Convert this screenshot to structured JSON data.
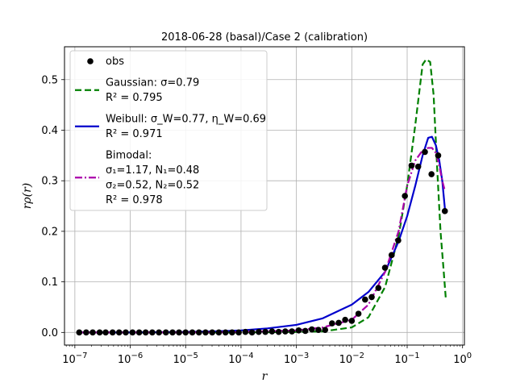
{
  "chart_data": {
    "type": "line",
    "title": "2018-06-28 (basal)/Case 2 (calibration)",
    "xlabel": "r",
    "ylabel": "rρ(r)",
    "xscale": "log",
    "xlim": [
      6.5e-08,
      1.08
    ],
    "ylim": [
      -0.025,
      0.565
    ],
    "xticks": [
      1e-07,
      1e-06,
      1e-05,
      0.0001,
      0.001,
      0.01,
      0.1,
      1
    ],
    "xtick_labels": [
      "10^-7",
      "10^-6",
      "10^-5",
      "10^-4",
      "10^-3",
      "10^-2",
      "10^-1",
      "10^0"
    ],
    "yticks": [
      0.0,
      0.1,
      0.2,
      0.3,
      0.4,
      0.5
    ],
    "ytick_labels": [
      "0.0",
      "0.1",
      "0.2",
      "0.3",
      "0.4",
      "0.5"
    ],
    "grid": true,
    "legend_position": "top-left",
    "legend": [
      {
        "key": "obs",
        "lines": [
          "obs"
        ]
      },
      {
        "key": "gaussian",
        "lines": [
          "Gaussian: σ=0.79",
          "R² = 0.795"
        ]
      },
      {
        "key": "weibull",
        "lines": [
          "Weibull: σ_W=0.77, η_W=0.69",
          "R² = 0.971"
        ]
      },
      {
        "key": "bimodal",
        "lines": [
          "Bimodal:",
          "σ₁=1.17, N₁=0.48",
          "σ₂=0.52, N₂=0.52",
          "R² = 0.978"
        ]
      }
    ],
    "series": [
      {
        "key": "obs",
        "name": "obs",
        "style": "markers",
        "color": "#000000",
        "x": [
          1.2e-07,
          1.6e-07,
          2.1e-07,
          2.8e-07,
          3.6e-07,
          4.8e-07,
          6.3e-07,
          8.3e-07,
          1.1e-06,
          1.45e-06,
          1.9e-06,
          2.5e-06,
          3.3e-06,
          4.4e-06,
          5.8e-06,
          7.6e-06,
          1e-05,
          1.32e-05,
          1.74e-05,
          2.29e-05,
          3.02e-05,
          3.98e-05,
          5.25e-05,
          6.9e-05,
          9.1e-05,
          0.00012,
          0.000158,
          0.000209,
          0.000275,
          0.000363,
          0.000479,
          0.00063,
          0.00083,
          0.0011,
          0.00145,
          0.0019,
          0.0025,
          0.0033,
          0.0044,
          0.0058,
          0.0076,
          0.01,
          0.0132,
          0.0174,
          0.0229,
          0.0302,
          0.0398,
          0.0525,
          0.069,
          0.091,
          0.12,
          0.158,
          0.209,
          0.275,
          0.363,
          0.479
        ],
        "y": [
          0.0,
          0.0,
          0.0,
          0.0,
          0.0,
          0.0,
          0.0,
          0.0,
          0.0,
          0.0,
          0.0,
          0.0,
          0.0,
          0.0,
          0.0,
          0.0,
          0.0,
          0.0,
          0.0,
          0.0,
          0.0,
          0.0,
          0.0,
          0.0,
          0.0,
          0.001,
          0.0,
          0.001,
          0.001,
          0.002,
          0.001,
          0.002,
          0.002,
          0.004,
          0.003,
          0.006,
          0.005,
          0.005,
          0.018,
          0.019,
          0.025,
          0.023,
          0.037,
          0.065,
          0.07,
          0.088,
          0.128,
          0.153,
          0.182,
          0.27,
          0.33,
          0.328,
          0.357,
          0.313,
          0.35,
          0.24
        ]
      },
      {
        "key": "gaussian",
        "name": "Gaussian",
        "style": "dashed",
        "color": "#008000",
        "x": [
          1.2e-07,
          1e-06,
          1e-05,
          0.0001,
          0.001,
          0.003,
          0.01,
          0.02,
          0.04,
          0.07,
          0.1,
          0.14,
          0.19,
          0.22,
          0.26,
          0.3,
          0.35,
          0.4,
          0.45,
          0.5
        ],
        "y": [
          0.0,
          0.0,
          0.0,
          0.0,
          0.001,
          0.002,
          0.01,
          0.03,
          0.09,
          0.19,
          0.29,
          0.41,
          0.53,
          0.54,
          0.535,
          0.47,
          0.32,
          0.2,
          0.13,
          0.065
        ]
      },
      {
        "key": "weibull",
        "name": "Weibull",
        "style": "solid",
        "color": "#0000cc",
        "x": [
          1.2e-07,
          1e-06,
          1e-05,
          3e-05,
          0.0001,
          0.0003,
          0.001,
          0.003,
          0.01,
          0.02,
          0.04,
          0.07,
          0.1,
          0.14,
          0.19,
          0.24,
          0.28,
          0.33,
          0.38,
          0.43,
          0.48
        ],
        "y": [
          0.0,
          0.0,
          0.001,
          0.002,
          0.004,
          0.008,
          0.015,
          0.028,
          0.055,
          0.08,
          0.12,
          0.18,
          0.23,
          0.29,
          0.35,
          0.385,
          0.387,
          0.37,
          0.34,
          0.3,
          0.245
        ]
      },
      {
        "key": "bimodal",
        "name": "Bimodal",
        "style": "dashdot",
        "color": "#aa00aa",
        "x": [
          1.2e-07,
          1e-06,
          1e-05,
          0.0001,
          0.001,
          0.003,
          0.01,
          0.02,
          0.04,
          0.07,
          0.1,
          0.14,
          0.19,
          0.24,
          0.28,
          0.33,
          0.38,
          0.43,
          0.48
        ],
        "y": [
          0.0,
          0.0,
          0.0,
          0.001,
          0.004,
          0.01,
          0.025,
          0.055,
          0.12,
          0.2,
          0.29,
          0.34,
          0.36,
          0.365,
          0.365,
          0.355,
          0.33,
          0.3,
          0.28
        ]
      }
    ]
  }
}
